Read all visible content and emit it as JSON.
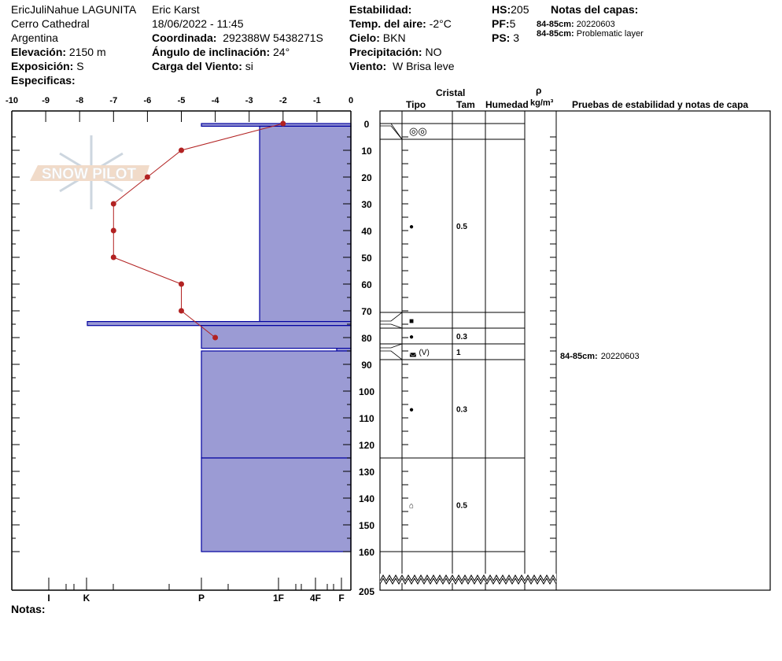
{
  "header": {
    "col1": {
      "observer_location": "EricJuliNahue LAGUNITA",
      "area": "Cerro Cathedral",
      "country": "Argentina",
      "elevation_label": "Elevación:",
      "elevation_value": "2150 m",
      "aspect_label": "Exposición:",
      "aspect_value": "S",
      "specifics_label": "Especificas:"
    },
    "col2": {
      "observer": "Eric Karst",
      "datetime": "18/06/2022 - 11:45",
      "coord_label": "Coordinada:",
      "coord_value": "292388W 5438271S",
      "slope_label": "Ángulo de inclinación:",
      "slope_value": "24°",
      "wind_load_label": "Carga del Viento:",
      "wind_load_value": "si"
    },
    "col3": {
      "stability_label": "Estabilidad:",
      "air_temp_label": "Temp. del aire:",
      "air_temp_value": "-2°C",
      "sky_label": "Cielo:",
      "sky_value": "BKN",
      "precip_label": "Precipitación:",
      "precip_value": "NO",
      "wind_label": "Viento:",
      "wind_value": "W Brisa leve"
    },
    "col4": {
      "hs_label": "HS:",
      "hs_value": "205",
      "pf_label": "PF:",
      "pf_value": "5",
      "ps_label": "PS:",
      "ps_value": "3"
    },
    "layer_notes": {
      "title": "Notas del capas:",
      "items": [
        {
          "label": "84-85cm:",
          "value": "20220603"
        },
        {
          "label": "84-85cm:",
          "value": "Problematic layer"
        }
      ]
    }
  },
  "logo_text": "SNOW PILOT",
  "table_header": {
    "crystal": "Cristal",
    "type": "Tipo",
    "size": "Tam",
    "moisture": "Humedad",
    "rho": "ρ",
    "density_unit": "kg/m³",
    "tests_notes": "Pruebas de estabilidad y notas de capa"
  },
  "footer": {
    "notes_label": "Notas:"
  },
  "colors": {
    "hardness_fill": "#9b9bd4",
    "hardness_stroke": "#0000a0",
    "temperature": "#b22222"
  },
  "chart_data": {
    "type": "line",
    "temperature_axis": {
      "ticks": [
        "-10",
        "-9",
        "-8",
        "-7",
        "-6",
        "-5",
        "-4",
        "-3",
        "-2",
        "-1",
        "0"
      ],
      "range": [
        -10,
        0
      ]
    },
    "depth_axis": {
      "ticks": [
        "0",
        "10",
        "20",
        "30",
        "40",
        "50",
        "60",
        "70",
        "80",
        "90",
        "100",
        "110",
        "120",
        "130",
        "140",
        "150",
        "160"
      ],
      "bottom_label": "205",
      "range": [
        0,
        205
      ]
    },
    "hardness_axis": {
      "ticks": [
        "I",
        "K",
        "P",
        "1F",
        "4F",
        "F"
      ]
    },
    "temperature_profile": [
      {
        "depth": 0,
        "temp": -2
      },
      {
        "depth": 10,
        "temp": -5
      },
      {
        "depth": 20,
        "temp": -6
      },
      {
        "depth": 30,
        "temp": -7
      },
      {
        "depth": 40,
        "temp": -7
      },
      {
        "depth": 50,
        "temp": -7
      },
      {
        "depth": 60,
        "temp": -5
      },
      {
        "depth": 70,
        "temp": -5
      },
      {
        "depth": 80,
        "temp": -4
      }
    ],
    "hardness_layers": [
      {
        "top": 0,
        "bottom": 1,
        "hardness": "P"
      },
      {
        "top": 1,
        "bottom": 74,
        "hardness": "P+"
      },
      {
        "top": 74,
        "bottom": 75.5,
        "hardness": "K+"
      },
      {
        "top": 75.5,
        "bottom": 84,
        "hardness": "P"
      },
      {
        "top": 84,
        "bottom": 85,
        "hardness": "F+"
      },
      {
        "top": 85,
        "bottom": 125,
        "hardness": "P"
      },
      {
        "top": 125,
        "bottom": 160,
        "hardness": "P"
      }
    ]
  },
  "crystal_rows": [
    {
      "type": "◎◎",
      "size": ""
    },
    {
      "type": "●",
      "size": "0.5"
    },
    {
      "type": "■",
      "size": ""
    },
    {
      "type": "●",
      "size": "0.3"
    },
    {
      "type": "◛ (V)",
      "size": "1"
    },
    {
      "type": "●",
      "size": "0.3"
    },
    {
      "type": "⌂",
      "size": "0.5"
    }
  ],
  "layer_test_notes": [
    {
      "label": "84-85cm:",
      "value": "20220603"
    }
  ]
}
